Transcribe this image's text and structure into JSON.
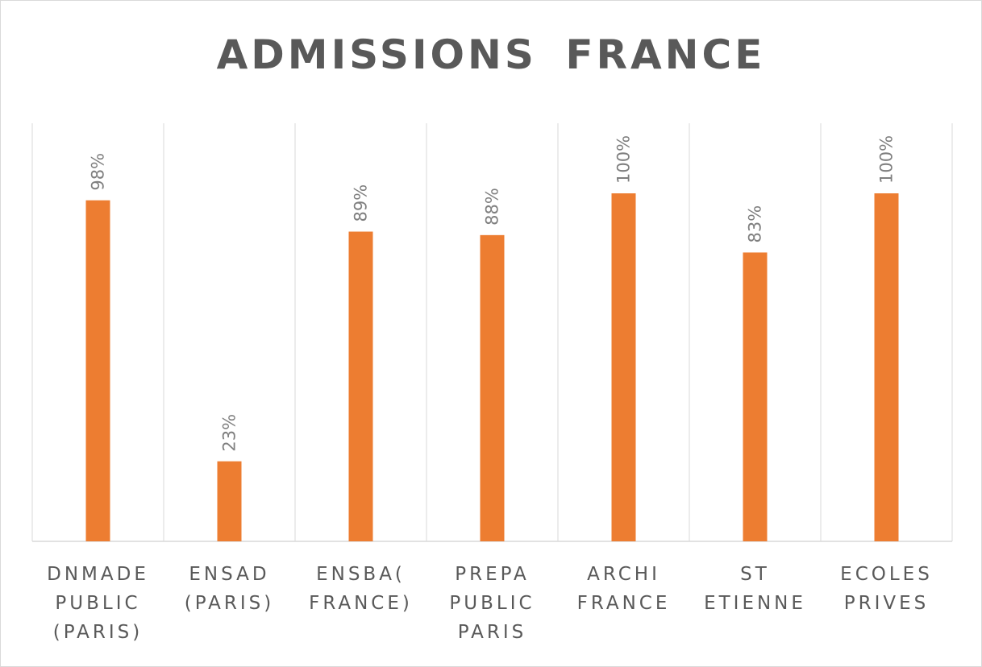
{
  "chart_data": {
    "type": "bar",
    "title": "ADMISSIONS FRANCE",
    "categories": [
      [
        "DNMADE",
        "PUBLIC",
        "(PARIS)"
      ],
      [
        "ENSAD",
        "(PARIS)"
      ],
      [
        "ENSBA(",
        "FRANCE)"
      ],
      [
        "PREPA",
        "PUBLIC",
        "PARIS"
      ],
      [
        "ARCHI",
        "FRANCE"
      ],
      [
        "ST",
        "ETIENNE"
      ],
      [
        "ECOLES",
        "PRIVES"
      ]
    ],
    "values": [
      98,
      23,
      89,
      88,
      100,
      83,
      100
    ],
    "data_labels": [
      "98%",
      "23%",
      "89%",
      "88%",
      "100%",
      "83%",
      "100%"
    ],
    "ylim": [
      0,
      100
    ],
    "grid": "vertical",
    "bar_color": "#ed7d31",
    "grid_color": "#d9d9d9",
    "text_color": "#595959"
  }
}
